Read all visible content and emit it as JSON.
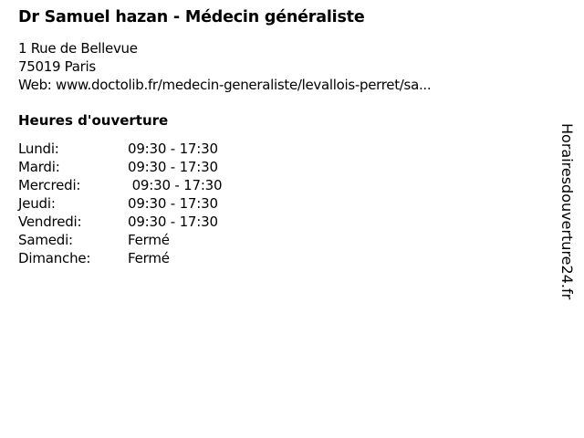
{
  "title": "Dr Samuel hazan - Médecin généraliste",
  "address": {
    "street": "1 Rue de Bellevue",
    "city": "75019 Paris",
    "web": "Web: www.doctolib.fr/medecin-generaliste/levallois-perret/sa..."
  },
  "hours_heading": "Heures d'ouverture",
  "hours": [
    {
      "day": "Lundi:",
      "time": "09:30 - 17:30"
    },
    {
      "day": "Mardi:",
      "time": "09:30 - 17:30"
    },
    {
      "day": "Mercredi:",
      "time": " 09:30 - 17:30"
    },
    {
      "day": "Jeudi:",
      "time": "09:30 - 17:30"
    },
    {
      "day": "Vendredi:",
      "time": "09:30 - 17:30"
    },
    {
      "day": "Samedi:",
      "time": "Fermé"
    },
    {
      "day": "Dimanche:",
      "time": "Fermé"
    }
  ],
  "watermark": "Horairesdouverture24.fr"
}
